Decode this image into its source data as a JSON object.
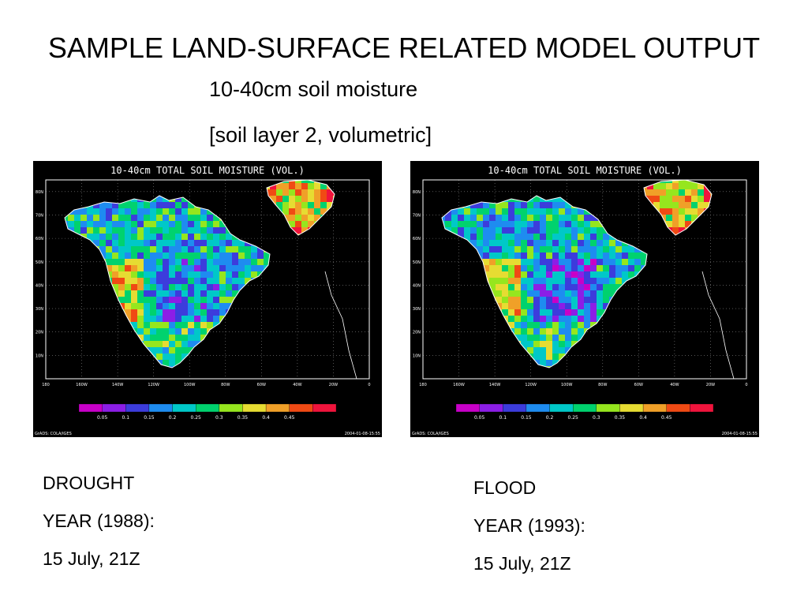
{
  "slide": {
    "title": "SAMPLE LAND-SURFACE RELATED MODEL OUTPUT",
    "subtitle_line1": "10-40cm soil moisture",
    "subtitle_line2": "[soil layer 2, volumetric]"
  },
  "map_common": {
    "title": "10-40cm TOTAL SOIL MOISTURE (VOL.)",
    "lat_labels": [
      "80N",
      "70N",
      "60N",
      "50N",
      "40N",
      "30N",
      "20N",
      "10N"
    ],
    "lon_labels": [
      "180",
      "160W",
      "140W",
      "120W",
      "100W",
      "80W",
      "60W",
      "40W",
      "20W",
      "0"
    ],
    "colorbar_labels": [
      "0.05",
      "0.1",
      "0.15",
      "0.2",
      "0.25",
      "0.3",
      "0.35",
      "0.4",
      "0.45"
    ],
    "colorbar_colors": [
      "#c800c8",
      "#8c1ee6",
      "#3c3cdc",
      "#1e8cf0",
      "#00c8c8",
      "#00d26e",
      "#96e61e",
      "#e6dc32",
      "#f0a028",
      "#f04a14",
      "#f0143c"
    ],
    "footer_left": "GrADS: COLA/IGES",
    "footer_right": "2004-01-08-15:55"
  },
  "maps": [
    {
      "id": "drought"
    },
    {
      "id": "flood"
    }
  ],
  "captions": {
    "left": [
      "DROUGHT",
      "YEAR (1988):",
      "15 July, 21Z"
    ],
    "right": [
      "FLOOD",
      "YEAR (1993):",
      "15 July, 21Z"
    ]
  }
}
